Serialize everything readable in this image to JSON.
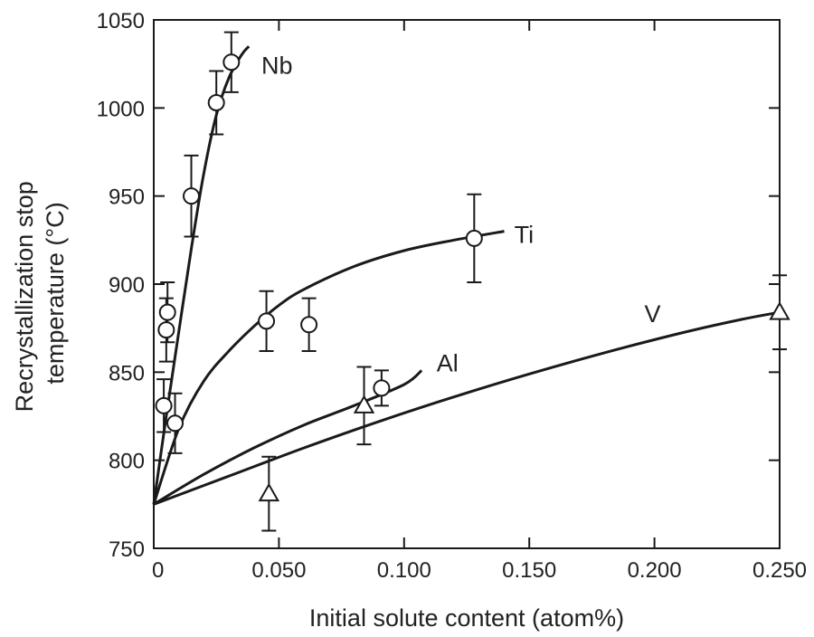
{
  "chart_data": {
    "type": "scatter",
    "xlabel": "Initial solute content (atom%)",
    "ylabel": "Recrystallization stop temperature (°C)",
    "ylabel_lines": [
      "Recrystallization stop",
      "temperature (°C)"
    ],
    "xlim": [
      0,
      0.25
    ],
    "ylim": [
      750,
      1050
    ],
    "x_ticks": [
      0,
      0.05,
      0.1,
      0.15,
      0.2,
      0.25
    ],
    "x_tick_labels": [
      "0",
      "0.050",
      "0.100",
      "0.150",
      "0.200",
      "0.250"
    ],
    "y_ticks": [
      750,
      800,
      850,
      900,
      950,
      1000,
      1050
    ],
    "y_tick_labels": [
      "750",
      "800",
      "850",
      "900",
      "950",
      "1000",
      "1050"
    ],
    "series": [
      {
        "name": "Nb",
        "marker": "circle",
        "points": [
          {
            "x": 0.004,
            "y": 831,
            "err": 15
          },
          {
            "x": 0.005,
            "y": 874,
            "err": 18
          },
          {
            "x": 0.0055,
            "y": 884,
            "err": 17
          },
          {
            "x": 0.0085,
            "y": 821,
            "err": 17
          },
          {
            "x": 0.015,
            "y": 950,
            "err": 23
          },
          {
            "x": 0.025,
            "y": 1003,
            "err": 18
          },
          {
            "x": 0.031,
            "y": 1026,
            "err": 17
          }
        ],
        "curve": [
          [
            0,
            775
          ],
          [
            0.005,
            825
          ],
          [
            0.01,
            873
          ],
          [
            0.015,
            920
          ],
          [
            0.02,
            963
          ],
          [
            0.025,
            996
          ],
          [
            0.03,
            1017
          ],
          [
            0.035,
            1030
          ],
          [
            0.038,
            1035
          ]
        ]
      },
      {
        "name": "Ti",
        "marker": "circle",
        "points": [
          {
            "x": 0.045,
            "y": 879,
            "err": 17
          },
          {
            "x": 0.062,
            "y": 877,
            "err": 15
          },
          {
            "x": 0.128,
            "y": 926,
            "err": 25
          }
        ],
        "curve": [
          [
            0,
            775
          ],
          [
            0.01,
            818
          ],
          [
            0.02,
            845
          ],
          [
            0.03,
            862
          ],
          [
            0.04,
            876
          ],
          [
            0.05,
            888
          ],
          [
            0.06,
            897
          ],
          [
            0.08,
            910
          ],
          [
            0.1,
            919
          ],
          [
            0.12,
            925
          ],
          [
            0.14,
            930
          ]
        ]
      },
      {
        "name": "Al",
        "marker": "circle",
        "points": [
          {
            "x": 0.091,
            "y": 841,
            "err": 10
          }
        ],
        "curve": [
          [
            0,
            775
          ],
          [
            0.02,
            792
          ],
          [
            0.04,
            807
          ],
          [
            0.06,
            820
          ],
          [
            0.08,
            831
          ],
          [
            0.1,
            843
          ],
          [
            0.107,
            851
          ]
        ]
      },
      {
        "name": "V",
        "marker": "triangle",
        "points": [
          {
            "x": 0.046,
            "y": 781,
            "err": 21
          },
          {
            "x": 0.084,
            "y": 831,
            "err": 22
          },
          {
            "x": 0.25,
            "y": 884,
            "err": 21
          }
        ],
        "curve": [
          [
            0,
            775
          ],
          [
            0.03,
            791
          ],
          [
            0.06,
            807
          ],
          [
            0.09,
            822
          ],
          [
            0.12,
            836
          ],
          [
            0.15,
            849
          ],
          [
            0.18,
            861
          ],
          [
            0.21,
            872
          ],
          [
            0.235,
            880
          ],
          [
            0.25,
            884
          ]
        ]
      }
    ],
    "series_label_positions": [
      {
        "name": "Nb",
        "x": 0.043,
        "y": 1024
      },
      {
        "name": "Ti",
        "x": 0.144,
        "y": 928
      },
      {
        "name": "Al",
        "x": 0.113,
        "y": 855
      },
      {
        "name": "V",
        "x": 0.196,
        "y": 883
      }
    ]
  }
}
